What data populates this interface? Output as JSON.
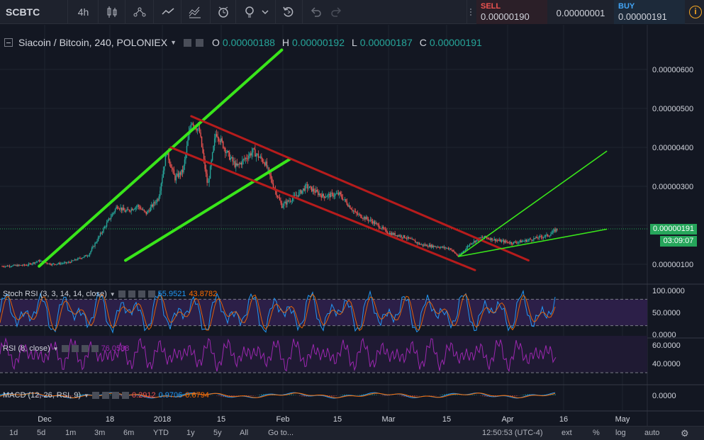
{
  "toolbar": {
    "symbol": "SCBTC",
    "interval": "4h",
    "icons": [
      "candles-icon",
      "compare-icon",
      "indicator-icon",
      "templates-icon",
      "alert-icon",
      "idea-icon",
      "replay-icon",
      "undo-icon",
      "redo-icon"
    ]
  },
  "trade": {
    "sell_label": "SELL",
    "sell_price": "0.00000190",
    "spread": "0.00000001",
    "buy_label": "BUY",
    "buy_price": "0.00000191",
    "info": "i"
  },
  "legend": {
    "title": "Siacoin / Bitcoin, 240, POLONIEX",
    "o_label": "O",
    "o_value": "0.00000188",
    "h_label": "H",
    "h_value": "0.00000192",
    "l_label": "L",
    "l_value": "0.00000187",
    "c_label": "C",
    "c_value": "0.00000191"
  },
  "indicators": {
    "stoch_title": "Stoch RSI (3, 3, 14, 14, close)",
    "stoch_k": "55.9521",
    "stoch_d": "43.8782",
    "rsi_title": "RSI (8, close)",
    "rsi_value": "76.0538",
    "macd_title": "MACD (12, 26, RSI, 9)",
    "macd_hist": "0.2912",
    "macd_line": "0.9706",
    "macd_signal": "0.6794"
  },
  "price_scale": {
    "labels": [
      "0.00000600",
      "0.00000500",
      "0.00000400",
      "0.00000300",
      "0.00000100"
    ],
    "last_price": "0.00000191",
    "countdown": "03:09:07"
  },
  "pane_scales": {
    "stoch": [
      "100.0000",
      "50.0000",
      "0.0000"
    ],
    "rsi": [
      "60.0000",
      "40.0000"
    ],
    "macd": [
      "0.0000"
    ]
  },
  "time_axis": [
    "Dec",
    "18",
    "2018",
    "15",
    "Feb",
    "15",
    "Mar",
    "15",
    "Apr",
    "16",
    "May"
  ],
  "bottom": {
    "ranges": [
      "1d",
      "5d",
      "1m",
      "3m",
      "6m",
      "YTD",
      "1y",
      "5y",
      "All"
    ],
    "goto": "Go to...",
    "clock": "12:50:53 (UTC-4)",
    "ext": "ext",
    "percent": "%",
    "log": "log",
    "auto": "auto"
  },
  "colors": {
    "up": "#26a69a",
    "down": "#ef5350",
    "trend_green": "#39e61a",
    "channel_red": "#b71c1c",
    "stoch_k": "#2196f3",
    "stoch_d": "#ff6d00",
    "rsi": "#9c27b0",
    "badge": "#26a65b"
  },
  "chart_data": {
    "type": "candlestick",
    "series_name": "Siacoin / Bitcoin",
    "x_ticks": [
      "Dec",
      "18",
      "2018",
      "15",
      "Feb",
      "15",
      "Mar",
      "15",
      "Apr",
      "16",
      "May"
    ],
    "y_ticks": [
      6e-06,
      5e-06,
      4e-06,
      3e-06,
      1e-06
    ],
    "ylim": [
      6e-07,
      6.7e-06
    ],
    "price_path": [
      [
        0,
        9.5e-07
      ],
      [
        6,
        9.8e-07
      ],
      [
        9,
        1.09e-06
      ],
      [
        12,
        1e-06
      ],
      [
        16,
        1.04e-06
      ],
      [
        21,
        1.24e-06
      ],
      [
        25,
        1.97e-06
      ],
      [
        28,
        2.5e-06
      ],
      [
        30,
        2.35e-06
      ],
      [
        33,
        2.5e-06
      ],
      [
        35,
        2.3e-06
      ],
      [
        38,
        2.7e-06
      ],
      [
        40,
        3.9e-06
      ],
      [
        42,
        3.2e-06
      ],
      [
        44,
        3.4e-06
      ],
      [
        46,
        4.7e-06
      ],
      [
        48,
        4.4e-06
      ],
      [
        50,
        3e-06
      ],
      [
        52,
        4.4e-06
      ],
      [
        55,
        3.8e-06
      ],
      [
        57,
        3.5e-06
      ],
      [
        61,
        3.9e-06
      ],
      [
        64,
        3.6e-06
      ],
      [
        66,
        3e-06
      ],
      [
        68,
        2.5e-06
      ],
      [
        72,
        2.8e-06
      ],
      [
        74,
        3e-06
      ],
      [
        78,
        2.75e-06
      ],
      [
        82,
        2.8e-06
      ],
      [
        86,
        2.3e-06
      ],
      [
        90,
        2.1e-06
      ],
      [
        94,
        1.8e-06
      ],
      [
        98,
        1.7e-06
      ],
      [
        102,
        1.5e-06
      ],
      [
        106,
        1.45e-06
      ],
      [
        109,
        1.4e-06
      ],
      [
        111,
        1.2e-06
      ],
      [
        114,
        1.55e-06
      ],
      [
        117,
        1.7e-06
      ],
      [
        121,
        1.6e-06
      ],
      [
        124,
        1.55e-06
      ],
      [
        127,
        1.6e-06
      ],
      [
        131,
        1.7e-06
      ],
      [
        133,
        1.75e-06
      ],
      [
        135,
        1.91e-06
      ]
    ],
    "trend_lines": [
      {
        "color": "green",
        "from": [
          9,
          9.5e-07
        ],
        "to": [
          68,
          6.5e-06
        ]
      },
      {
        "color": "green",
        "from": [
          30,
          1.1e-06
        ],
        "to": [
          70,
          3.7e-06
        ]
      },
      {
        "color": "red",
        "from": [
          46,
          4.8e-06
        ],
        "to": [
          128,
          1.1e-06
        ]
      },
      {
        "color": "red",
        "from": [
          41,
          4e-06
        ],
        "to": [
          115,
          8.5e-07
        ]
      },
      {
        "color": "green",
        "from": [
          111,
          1.2e-06
        ],
        "to": [
          147,
          1.9e-06
        ]
      },
      {
        "color": "green",
        "from": [
          111,
          1.2e-06
        ],
        "to": [
          147,
          3.9e-06
        ]
      }
    ],
    "last_price": 1.91e-06
  }
}
